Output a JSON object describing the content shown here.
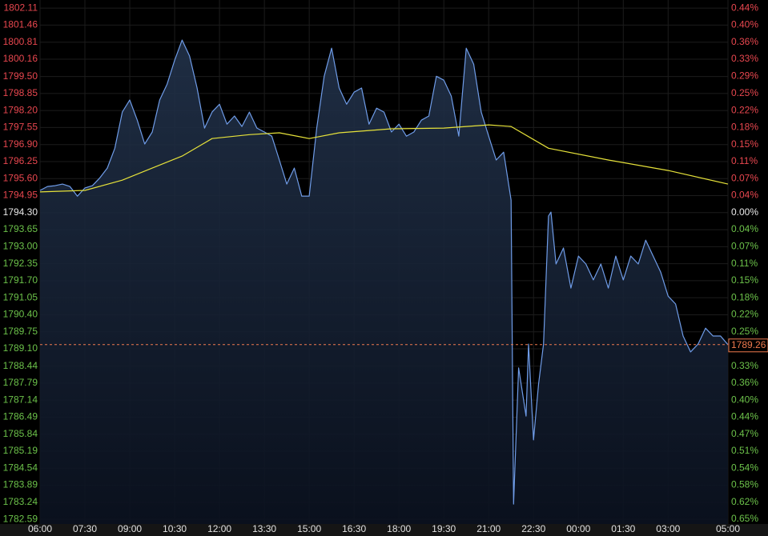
{
  "chart_data": {
    "type": "line",
    "xlim": [
      "06:00",
      "05:00"
    ],
    "xticks": [
      "06:00",
      "07:30",
      "09:00",
      "10:30",
      "12:00",
      "13:30",
      "15:00",
      "16:30",
      "18:00",
      "19:30",
      "21:00",
      "22:30",
      "00:00",
      "01:30",
      "03:00",
      "05:00"
    ],
    "ylim": [
      1782.41,
      1802.42
    ],
    "yticks": [
      1802.11,
      1801.46,
      1800.81,
      1800.16,
      {
        "value": 1799.5,
        "label": "1799.50"
      },
      1798.85,
      {
        "value": 1798.2,
        "label": "1798.20"
      },
      1797.55,
      {
        "value": 1796.9,
        "label": "1796.90"
      },
      1796.25,
      {
        "value": 1795.6,
        "label": "1795.60"
      },
      1794.95,
      {
        "value": 1794.3,
        "label": "1794.30"
      },
      1793.65,
      {
        "value": 1793.0,
        "label": "1793.00"
      },
      1792.35,
      {
        "value": 1791.7,
        "label": "1791.70"
      },
      1791.05,
      {
        "value": 1790.4,
        "label": "1790.40"
      },
      1789.75,
      {
        "value": 1789.1,
        "label": "1789.10"
      },
      1788.44,
      1787.79,
      1787.14,
      1786.49,
      1785.84,
      1785.19,
      1784.54,
      1783.89,
      1783.24,
      1782.59
    ],
    "y2lim": [
      -0.6627,
      0.4525
    ],
    "y2ticks": [
      {
        "value": 0.4353,
        "label": "0.44%"
      },
      {
        "value": 0.399,
        "label": "0.40%"
      },
      {
        "value": 0.3628,
        "label": "0.36%"
      },
      {
        "value": 0.3266,
        "label": "0.33%"
      },
      {
        "value": 0.2898,
        "label": "0.29%"
      },
      {
        "value": 0.2536,
        "label": "0.25%"
      },
      {
        "value": 0.2174,
        "label": "0.22%"
      },
      {
        "value": 0.1811,
        "label": "0.18%"
      },
      {
        "value": 0.145,
        "label": "0.15%"
      },
      {
        "value": 0.1087,
        "label": "0.11%"
      },
      {
        "value": 0.0725,
        "label": "0.07%"
      },
      {
        "value": 0.0362,
        "label": "0.04%"
      },
      {
        "value": 0,
        "label": "0.00%"
      },
      {
        "value": -0.0362,
        "label": "0.04%"
      },
      {
        "value": -0.0725,
        "label": "0.07%"
      },
      {
        "value": -0.1087,
        "label": "0.11%"
      },
      {
        "value": -0.145,
        "label": "0.15%"
      },
      {
        "value": -0.1811,
        "label": "0.18%"
      },
      {
        "value": -0.2174,
        "label": "0.22%"
      },
      {
        "value": -0.2536,
        "label": "0.25%"
      },
      {
        "value": -0.3266,
        "label": "0.33%"
      },
      {
        "value": -0.3628,
        "label": "0.36%"
      },
      {
        "value": -0.399,
        "label": "0.40%"
      },
      {
        "value": -0.4353,
        "label": "0.44%"
      },
      {
        "value": -0.4715,
        "label": "0.47%"
      },
      {
        "value": -0.5077,
        "label": "0.51%"
      },
      {
        "value": -0.544,
        "label": "0.54%"
      },
      {
        "value": -0.5802,
        "label": "0.58%"
      },
      {
        "value": -0.6164,
        "label": "0.62%"
      },
      {
        "value": -0.6526,
        "label": "0.65%"
      }
    ],
    "reference": 1794.3,
    "up_color": "#e8474f",
    "down_color": "#6cc24a",
    "grid": true,
    "current_price": {
      "value": 1789.26,
      "label": "1789.26",
      "color": "#f07a4e"
    },
    "series": [
      {
        "color": "#6f9ce8",
        "area": true,
        "x": [
          "06:00",
          "06:15",
          "06:30",
          "06:45",
          "07:00",
          "07:15",
          "07:30",
          "07:45",
          "08:00",
          "08:15",
          "08:30",
          "08:45",
          "09:00",
          "09:15",
          "09:30",
          "09:45",
          "10:00",
          "10:15",
          "10:30",
          "10:45",
          "11:00",
          "11:15",
          "11:30",
          "11:45",
          "12:00",
          "12:15",
          "12:30",
          "12:45",
          "13:00",
          "13:15",
          "13:30",
          "13:45",
          "14:00",
          "14:15",
          "14:30",
          "14:45",
          "15:00",
          "15:15",
          "15:30",
          "15:45",
          "16:00",
          "16:15",
          "16:30",
          "16:45",
          "17:00",
          "17:15",
          "17:30",
          "17:45",
          "18:00",
          "18:15",
          "18:30",
          "18:45",
          "19:00",
          "19:15",
          "19:30",
          "19:45",
          "20:00",
          "20:15",
          "20:30",
          "20:45",
          "21:00",
          "21:15",
          "21:30",
          "21:45",
          "21:50",
          "22:00",
          "22:15",
          "22:20",
          "22:30",
          "22:40",
          "22:50",
          "23:00",
          "23:05",
          "23:15",
          "23:30",
          "23:45",
          "00:00",
          "00:15",
          "00:30",
          "00:45",
          "01:00",
          "01:15",
          "01:30",
          "01:45",
          "02:00",
          "02:15",
          "02:30",
          "02:45",
          "03:00",
          "03:15",
          "03:30",
          "03:45",
          "04:00",
          "04:15",
          "04:30",
          "04:45",
          "05:00"
        ],
        "values": [
          1795.15,
          1795.3,
          1795.33,
          1795.39,
          1795.3,
          1794.93,
          1795.24,
          1795.33,
          1795.63,
          1796.0,
          1796.76,
          1798.14,
          1798.6,
          1797.83,
          1796.92,
          1797.38,
          1798.6,
          1799.21,
          1800.12,
          1800.89,
          1800.28,
          1799.06,
          1797.53,
          1798.14,
          1798.44,
          1797.68,
          1797.99,
          1797.59,
          1798.14,
          1797.53,
          1797.38,
          1797.22,
          1796.31,
          1795.39,
          1796.0,
          1794.93,
          1794.93,
          1797.53,
          1799.51,
          1800.58,
          1799.06,
          1798.44,
          1798.9,
          1799.06,
          1797.68,
          1798.29,
          1798.14,
          1797.38,
          1797.68,
          1797.22,
          1797.38,
          1797.83,
          1797.99,
          1799.51,
          1799.36,
          1798.75,
          1797.22,
          1800.58,
          1799.97,
          1798.14,
          1797.22,
          1796.31,
          1796.61,
          1794.78,
          1783.17,
          1788.37,
          1786.53,
          1789.28,
          1785.62,
          1787.75,
          1789.28,
          1794.17,
          1794.32,
          1792.34,
          1792.95,
          1791.42,
          1792.64,
          1792.34,
          1791.73,
          1792.34,
          1791.42,
          1792.64,
          1791.73,
          1792.64,
          1792.34,
          1793.25,
          1792.64,
          1792.03,
          1791.11,
          1790.81,
          1789.59,
          1788.98,
          1789.28,
          1789.89,
          1789.59,
          1789.59,
          1789.26
        ]
      },
      {
        "color": "#e6e23a",
        "area": false,
        "x": [
          "06:00",
          "07:30",
          "08:45",
          "09:45",
          "10:45",
          "11:45",
          "13:00",
          "14:00",
          "15:00",
          "16:00",
          "17:45",
          "19:30",
          "21:00",
          "21:45",
          "23:00",
          "01:00",
          "03:00",
          "05:00"
        ],
        "values": [
          1795.09,
          1795.15,
          1795.54,
          1796.0,
          1796.46,
          1797.13,
          1797.28,
          1797.35,
          1797.13,
          1797.35,
          1797.5,
          1797.53,
          1797.65,
          1797.59,
          1796.76,
          1796.31,
          1795.91,
          1795.39
        ]
      }
    ]
  }
}
